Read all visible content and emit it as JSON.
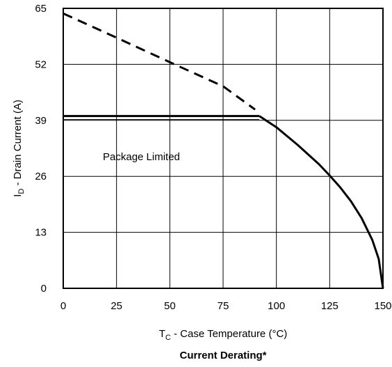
{
  "chart_data": {
    "type": "line",
    "title": "Current Derating*",
    "xlabel": {
      "main": "T",
      "sub": "C",
      "rest": " - Case Temperature (°C)"
    },
    "ylabel": {
      "main": "I",
      "sub": "D",
      "rest": " - Drain Current (A)"
    },
    "xlim": [
      0,
      150
    ],
    "ylim": [
      0,
      65
    ],
    "xticks": [
      0,
      25,
      50,
      75,
      100,
      125,
      150
    ],
    "yticks": [
      0,
      13,
      26,
      39,
      52,
      65
    ],
    "grid": true,
    "annotation": "Package Limited",
    "series": [
      {
        "style": "dashed",
        "x": [
          0,
          25,
          50,
          75,
          90
        ],
        "y": [
          63.8,
          58.2,
          52.5,
          46.9,
          41.5
        ]
      },
      {
        "style": "solid-double",
        "x": [
          0,
          92
        ],
        "y": [
          40,
          40
        ]
      },
      {
        "style": "solid",
        "x": [
          92,
          100,
          110,
          120,
          125,
          130,
          135,
          140,
          145,
          148,
          150
        ],
        "y": [
          40,
          37.4,
          33.3,
          28.8,
          26.2,
          23.4,
          20.2,
          16.3,
          11.2,
          6.8,
          0
        ]
      }
    ]
  }
}
